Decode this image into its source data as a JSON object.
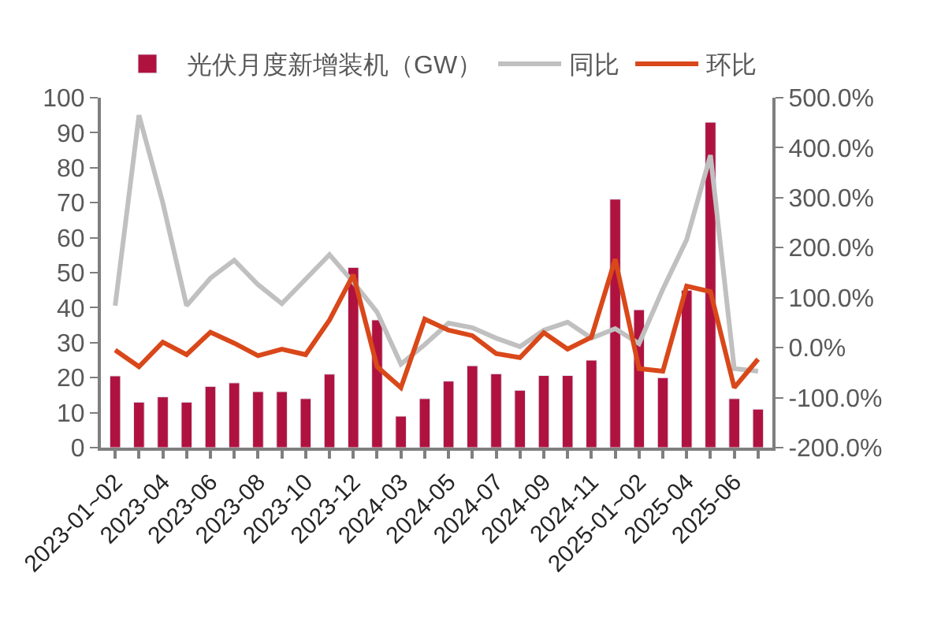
{
  "chart_data": {
    "type": "bar",
    "categories": [
      "2023-01~02",
      null,
      "2023-04",
      null,
      "2023-06",
      null,
      "2023-08",
      null,
      "2023-10",
      null,
      "2023-12",
      null,
      "2024-03",
      null,
      "2024-05",
      null,
      "2024-07",
      null,
      "2024-09",
      null,
      "2024-11",
      null,
      "2025-01~02",
      null,
      "2025-04",
      null,
      "2025-06",
      null
    ],
    "series": [
      {
        "name": "光伏月度新增装机（GW）",
        "color": "#b0123f",
        "values": [
          20.5,
          13,
          14.5,
          13,
          17.5,
          18.5,
          16,
          16,
          14,
          21,
          51.5,
          36.5,
          9,
          14,
          19,
          23.4,
          21.1,
          16.4,
          20.6,
          20.6,
          25,
          71,
          39.4,
          20,
          45,
          93,
          14,
          11
        ]
      },
      {
        "name": "同比",
        "type": "line",
        "axis": "y2",
        "color": "#c0c0c0",
        "values": [
          84,
          465,
          290,
          84,
          139,
          175,
          126,
          88,
          137,
          186,
          131,
          71,
          -33,
          6,
          49,
          40,
          19,
          2,
          35,
          51,
          19,
          38,
          8,
          117,
          216,
          385,
          -42,
          -47
        ]
      },
      {
        "name": "环比",
        "type": "line",
        "axis": "y2",
        "color": "#d9481a",
        "values": [
          -5,
          -38,
          11,
          -14,
          31,
          9,
          -16,
          -3,
          -14,
          55,
          146,
          -38,
          -80,
          57,
          35,
          24,
          -12,
          -20,
          30,
          -3,
          21,
          177,
          -42,
          -47,
          123,
          112,
          -80,
          -23
        ]
      }
    ],
    "ylim": [
      0,
      100
    ],
    "yticks": [
      0,
      10,
      20,
      30,
      40,
      50,
      60,
      70,
      80,
      90,
      100
    ],
    "y2lim": [
      -200,
      500
    ],
    "y2ticks": [
      {
        "value": -200,
        "label": "-200.0%"
      },
      {
        "value": -100,
        "label": "-100.0%"
      },
      {
        "value": 0,
        "label": "0.0%"
      },
      {
        "value": 100,
        "label": "100.0%"
      },
      {
        "value": 200,
        "label": "200.0%"
      },
      {
        "value": 300,
        "label": "300.0%"
      },
      {
        "value": 400,
        "label": "400.0%"
      },
      {
        "value": 500,
        "label": "500.0%"
      }
    ],
    "legend": "top",
    "marker": "none",
    "line_style": "solid"
  }
}
